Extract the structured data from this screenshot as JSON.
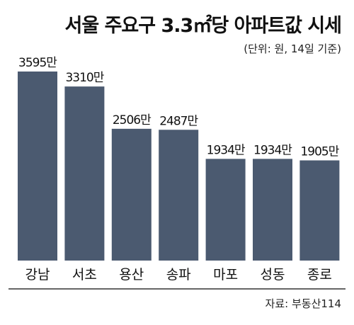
{
  "header": {
    "title": "서울 주요구 3.3㎡당 아파트값 시세",
    "subtitle": "(단위: 원, 14일 기준)"
  },
  "footer": {
    "source": "자료: 부동산114"
  },
  "colors": {
    "bar": "#4b5a70",
    "axis": "#333333"
  },
  "chart_data": {
    "type": "bar",
    "title": "서울 주요구 3.3㎡당 아파트값 시세",
    "subtitle": "(단위: 원, 14일 기준)",
    "categories": [
      "강남",
      "서초",
      "용산",
      "송파",
      "마포",
      "성동",
      "종로"
    ],
    "values": [
      3595,
      3310,
      2506,
      2487,
      1934,
      1934,
      1905
    ],
    "value_labels": [
      "3595만",
      "3310만",
      "2506만",
      "2487만",
      "1934만",
      "1934만",
      "1905만"
    ],
    "value_unit": "만",
    "xlabel": "",
    "ylabel": "",
    "grid": false,
    "legend": "none"
  }
}
